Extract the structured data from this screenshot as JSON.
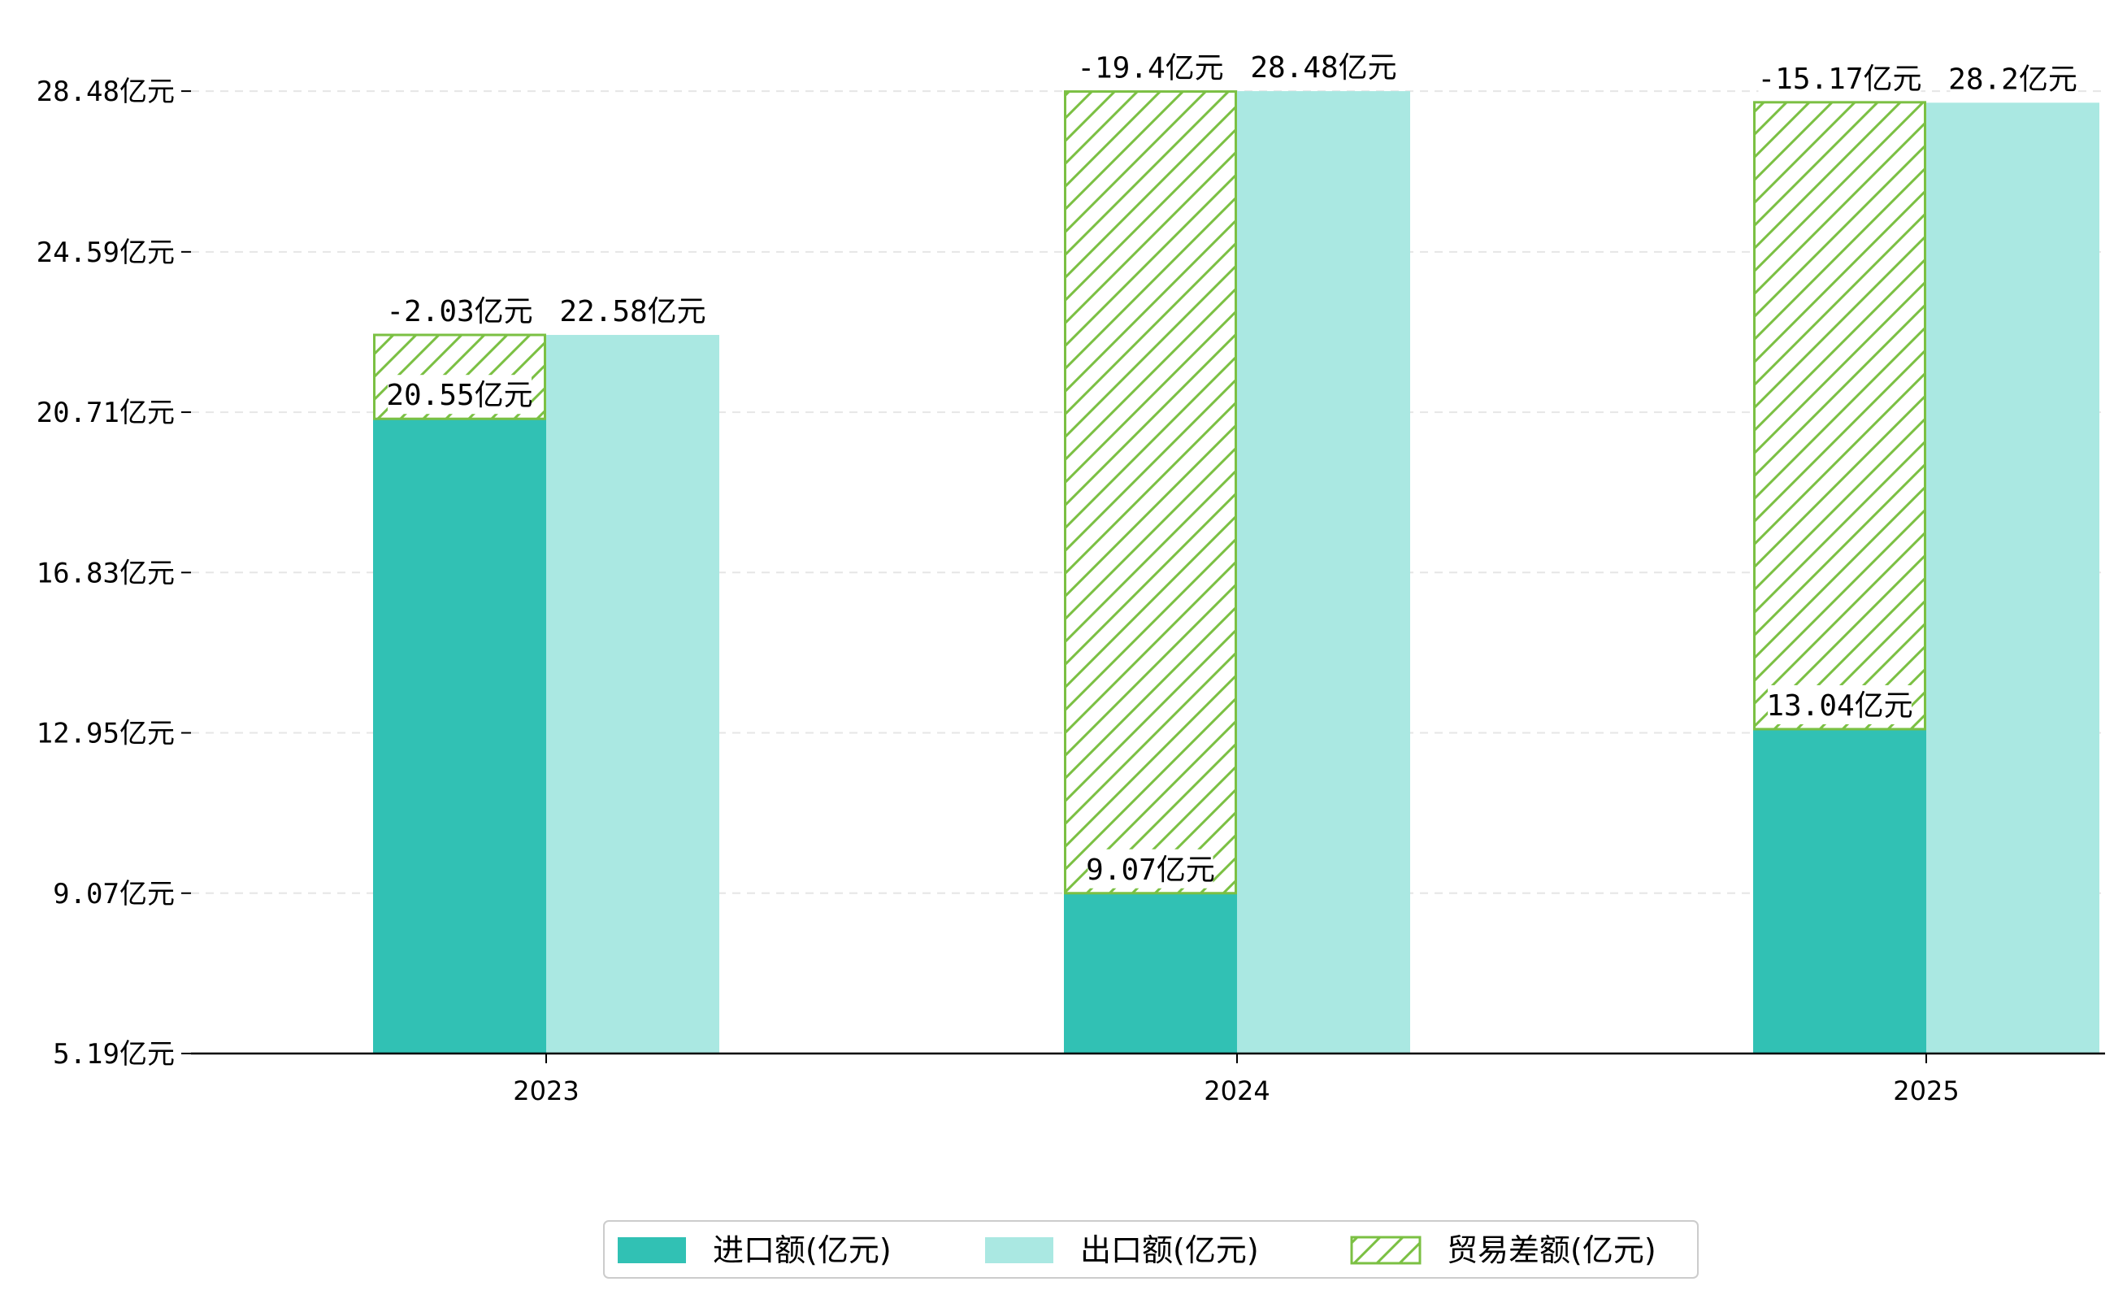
{
  "chart_data": {
    "type": "bar",
    "title": "",
    "xlabel": "",
    "ylabel": "",
    "categories": [
      "2023",
      "2024",
      "2025"
    ],
    "ylim": [
      5.19,
      29.8
    ],
    "yticks": [
      5.19,
      9.07,
      12.95,
      16.83,
      20.71,
      24.59,
      28.48
    ],
    "ytick_labels": [
      "5.19亿元",
      "9.07亿元",
      "12.95亿元",
      "16.83亿元",
      "20.71亿元",
      "24.59亿元",
      "28.48亿元"
    ],
    "grid": "y-dashed",
    "legend_position": "bottom-center",
    "series": [
      {
        "name": "进口额(亿元)",
        "values": [
          20.55,
          9.07,
          13.04
        ],
        "labels": [
          "20.55亿元",
          "9.07亿元",
          "13.04亿元"
        ],
        "color": "#31c1b4"
      },
      {
        "name": "出口额(亿元)",
        "values": [
          22.58,
          28.48,
          28.2
        ],
        "labels": [
          "22.58亿元",
          "28.48亿元",
          "28.2亿元"
        ],
        "color": "#aae8e2"
      },
      {
        "name": "贸易差额(亿元)",
        "values": [
          -2.03,
          -19.4,
          -15.17
        ],
        "labels": [
          "-2.03亿元",
          "-19.4亿元",
          "-15.17亿元"
        ],
        "color": "#7bc043",
        "style": "hatched",
        "stacked_on": "进口额(亿元)"
      }
    ]
  }
}
